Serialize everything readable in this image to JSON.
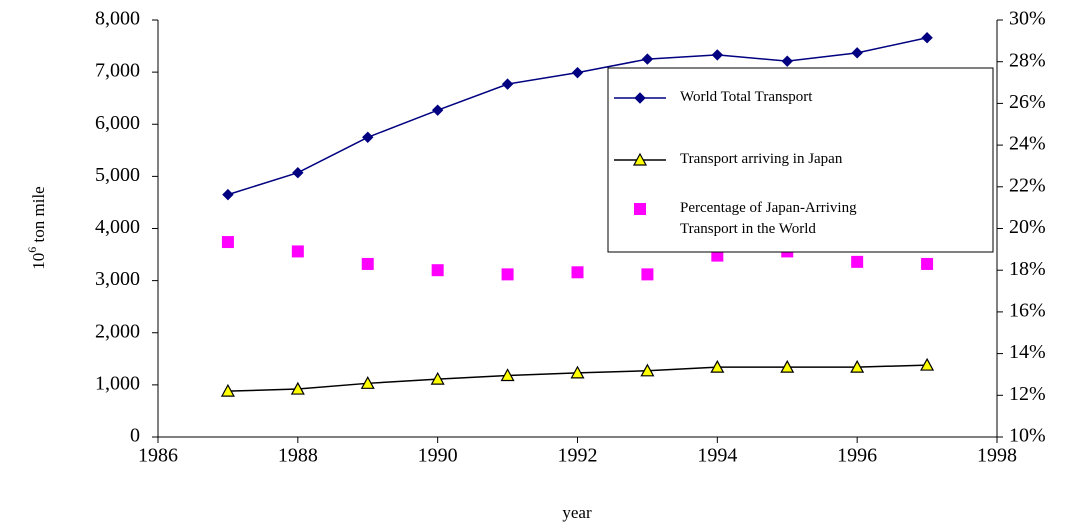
{
  "chart_data": {
    "type": "line",
    "x_label": "year",
    "y_label": [
      "10",
      "6",
      " ton mile"
    ],
    "x": [
      1987,
      1988,
      1989,
      1990,
      1991,
      1992,
      1993,
      1994,
      1995,
      1996,
      1997
    ],
    "xlim": [
      1986,
      1998
    ],
    "xticks": [
      1986,
      1988,
      1990,
      1992,
      1994,
      1996,
      1998
    ],
    "ylim": [
      0,
      8000
    ],
    "yticks": [
      0,
      {
        "value": 1000,
        "label": "1,000"
      },
      {
        "value": 2000,
        "label": "2,000"
      },
      {
        "value": 3000,
        "label": "3,000"
      },
      {
        "value": 4000,
        "label": "4,000"
      },
      {
        "value": 5000,
        "label": "5,000"
      },
      {
        "value": 6000,
        "label": "6,000"
      },
      {
        "value": 7000,
        "label": "7,000"
      },
      {
        "value": 8000,
        "label": "8,000"
      }
    ],
    "y2lim": [
      10,
      30
    ],
    "y2ticks": [
      {
        "value": 10,
        "label": "10%"
      },
      {
        "value": 12,
        "label": "12%"
      },
      {
        "value": 14,
        "label": "14%"
      },
      {
        "value": 16,
        "label": "16%"
      },
      {
        "value": 18,
        "label": "18%"
      },
      {
        "value": 20,
        "label": "20%"
      },
      {
        "value": 22,
        "label": "22%"
      },
      {
        "value": 24,
        "label": "24%"
      },
      {
        "value": 26,
        "label": "26%"
      },
      {
        "value": 28,
        "label": "28%"
      },
      {
        "value": 30,
        "label": "30%"
      }
    ],
    "grid": false,
    "series": [
      {
        "name": "World Total Transport",
        "color": "#000080",
        "marker": "diamond",
        "line": true,
        "values": [
          4650,
          5070,
          5750,
          6270,
          6770,
          6990,
          7250,
          7330,
          7210,
          7370,
          7660
        ]
      },
      {
        "name": "Transport arriving in Japan",
        "color": "#ffff00",
        "marker": "triangle",
        "line": true,
        "values": [
          880,
          920,
          1030,
          1110,
          1180,
          1230,
          1270,
          1340,
          1340,
          1340,
          1380
        ]
      },
      {
        "name": "Percentage of Japan-Arriving Transport in the World",
        "color": "#ff00ff",
        "marker": "square",
        "line": false,
        "axis": "y2",
        "values": [
          19.35,
          18.9,
          18.3,
          18.0,
          17.8,
          17.9,
          17.8,
          18.7,
          18.9,
          18.4,
          18.3
        ]
      }
    ]
  }
}
